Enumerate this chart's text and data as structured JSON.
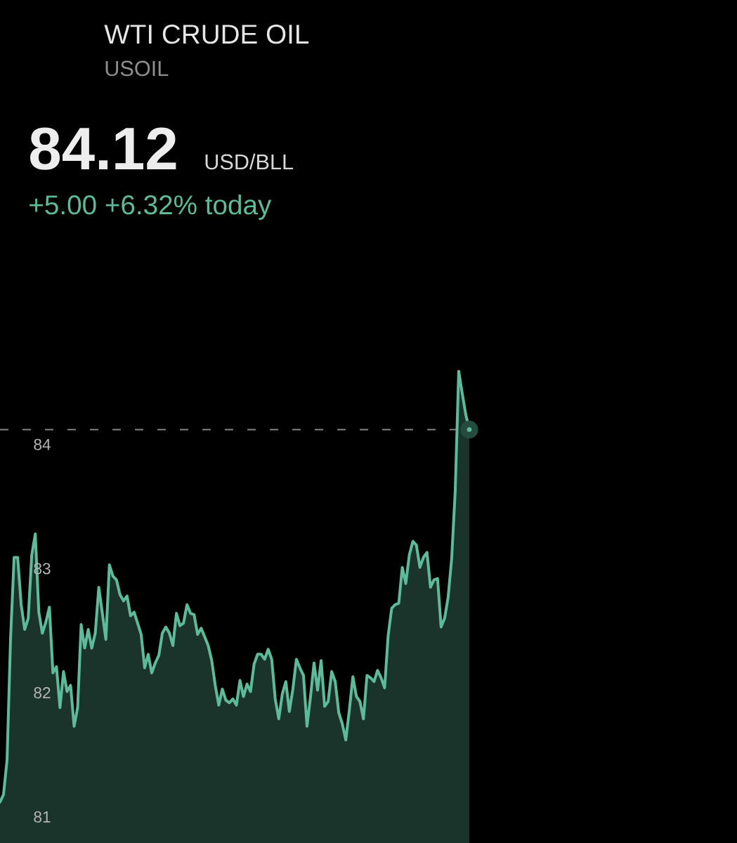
{
  "chart_data": {
    "type": "area",
    "title": "WTI CRUDE OIL",
    "subtitle": "USOIL",
    "annotations": [
      "84.12",
      "USD/BLL",
      "+5.00 +6.32% today"
    ],
    "categories": [
      null,
      null,
      null,
      null,
      null,
      null,
      null,
      null,
      null,
      null,
      null,
      null,
      null,
      null,
      null,
      null,
      null,
      null,
      null,
      null,
      null,
      null,
      null,
      null,
      null,
      null,
      null,
      null,
      null,
      null,
      null,
      null,
      null,
      null,
      null,
      null,
      null,
      null,
      null,
      null,
      null,
      null,
      null,
      null,
      null,
      null,
      null,
      null,
      null,
      null,
      null,
      null,
      null,
      null,
      null,
      null,
      null,
      null,
      null,
      null,
      null,
      null,
      null,
      null,
      null,
      null,
      null,
      null,
      null,
      null,
      null,
      null,
      null,
      null,
      null,
      null,
      null,
      null,
      null,
      null,
      null,
      null,
      null,
      null,
      null,
      null,
      null,
      null,
      null,
      null,
      null,
      null,
      null,
      null,
      null,
      null,
      null,
      null,
      null,
      null,
      null,
      null,
      null,
      null,
      null,
      null,
      null,
      null,
      null,
      null,
      null,
      null,
      null,
      null,
      null,
      null,
      null,
      null,
      null,
      null,
      null,
      null,
      null,
      null,
      null,
      null,
      null,
      null,
      null,
      null,
      null,
      null,
      null,
      null
    ],
    "series": [
      {
        "color": "#5dbb9b",
        "values": [
          81.12,
          81.18,
          81.46,
          82.44,
          83.09,
          83.09,
          82.71,
          82.51,
          82.6,
          83.11,
          83.28,
          82.65,
          82.48,
          82.57,
          82.69,
          82.16,
          82.21,
          81.88,
          82.17,
          82.01,
          82.06,
          81.73,
          81.88,
          82.55,
          82.36,
          82.51,
          82.36,
          82.48,
          82.85,
          82.64,
          82.43,
          83.03,
          82.94,
          82.91,
          82.79,
          82.74,
          82.78,
          82.62,
          82.65,
          82.56,
          82.47,
          82.2,
          82.31,
          82.16,
          82.24,
          82.3,
          82.48,
          82.53,
          82.48,
          82.38,
          82.64,
          82.54,
          82.56,
          82.71,
          82.64,
          82.63,
          82.47,
          82.52,
          82.45,
          82.38,
          82.26,
          82.06,
          81.9,
          82.03,
          81.94,
          81.92,
          81.95,
          81.9,
          82.1,
          81.97,
          82.07,
          82.01,
          82.23,
          82.31,
          82.31,
          82.27,
          82.35,
          82.27,
          81.95,
          81.79,
          81.99,
          82.09,
          81.85,
          82.03,
          82.27,
          82.2,
          82.14,
          81.73,
          81.97,
          82.24,
          82.02,
          82.26,
          81.89,
          81.93,
          82.17,
          82.09,
          81.84,
          81.75,
          81.62,
          81.86,
          82.13,
          81.97,
          81.93,
          81.79,
          82.14,
          82.12,
          82.09,
          82.18,
          82.12,
          82.04,
          82.46,
          82.68,
          82.71,
          82.72,
          83.01,
          82.88,
          83.11,
          83.22,
          83.19,
          83.01,
          83.09,
          83.13,
          82.85,
          82.91,
          82.92,
          82.53,
          82.6,
          82.77,
          83.08,
          83.62,
          84.59,
          84.41,
          84.24,
          84.12
        ]
      },
      {
        "type": "scatter",
        "color": "#5dbb9b",
        "marker": "circle",
        "values": [
          null,
          null,
          null,
          null,
          null,
          null,
          null,
          null,
          null,
          null,
          null,
          null,
          null,
          null,
          null,
          null,
          null,
          null,
          null,
          null,
          null,
          null,
          null,
          null,
          null,
          null,
          null,
          null,
          null,
          null,
          null,
          null,
          null,
          null,
          null,
          null,
          null,
          null,
          null,
          null,
          null,
          null,
          null,
          null,
          null,
          null,
          null,
          null,
          null,
          null,
          null,
          null,
          null,
          null,
          null,
          null,
          null,
          null,
          null,
          null,
          null,
          null,
          null,
          null,
          null,
          null,
          null,
          null,
          null,
          null,
          null,
          null,
          null,
          null,
          null,
          null,
          null,
          null,
          null,
          null,
          null,
          null,
          null,
          null,
          null,
          null,
          null,
          null,
          null,
          null,
          null,
          null,
          null,
          null,
          null,
          null,
          null,
          null,
          null,
          null,
          null,
          null,
          null,
          null,
          null,
          null,
          null,
          null,
          null,
          null,
          null,
          null,
          null,
          null,
          null,
          null,
          null,
          null,
          null,
          null,
          null,
          null,
          null,
          null,
          null,
          null,
          null,
          null,
          null,
          null,
          null,
          null,
          null,
          84.12
        ]
      }
    ],
    "ylim": [
      80.79,
      87.58
    ],
    "yticks": [
      81,
      82,
      83,
      84
    ],
    "tick_labels": "y",
    "ref_lines": [
      {
        "axis": "y",
        "value": 84.12,
        "color": "#8c8c8c",
        "line_style": "dashed"
      }
    ]
  }
}
